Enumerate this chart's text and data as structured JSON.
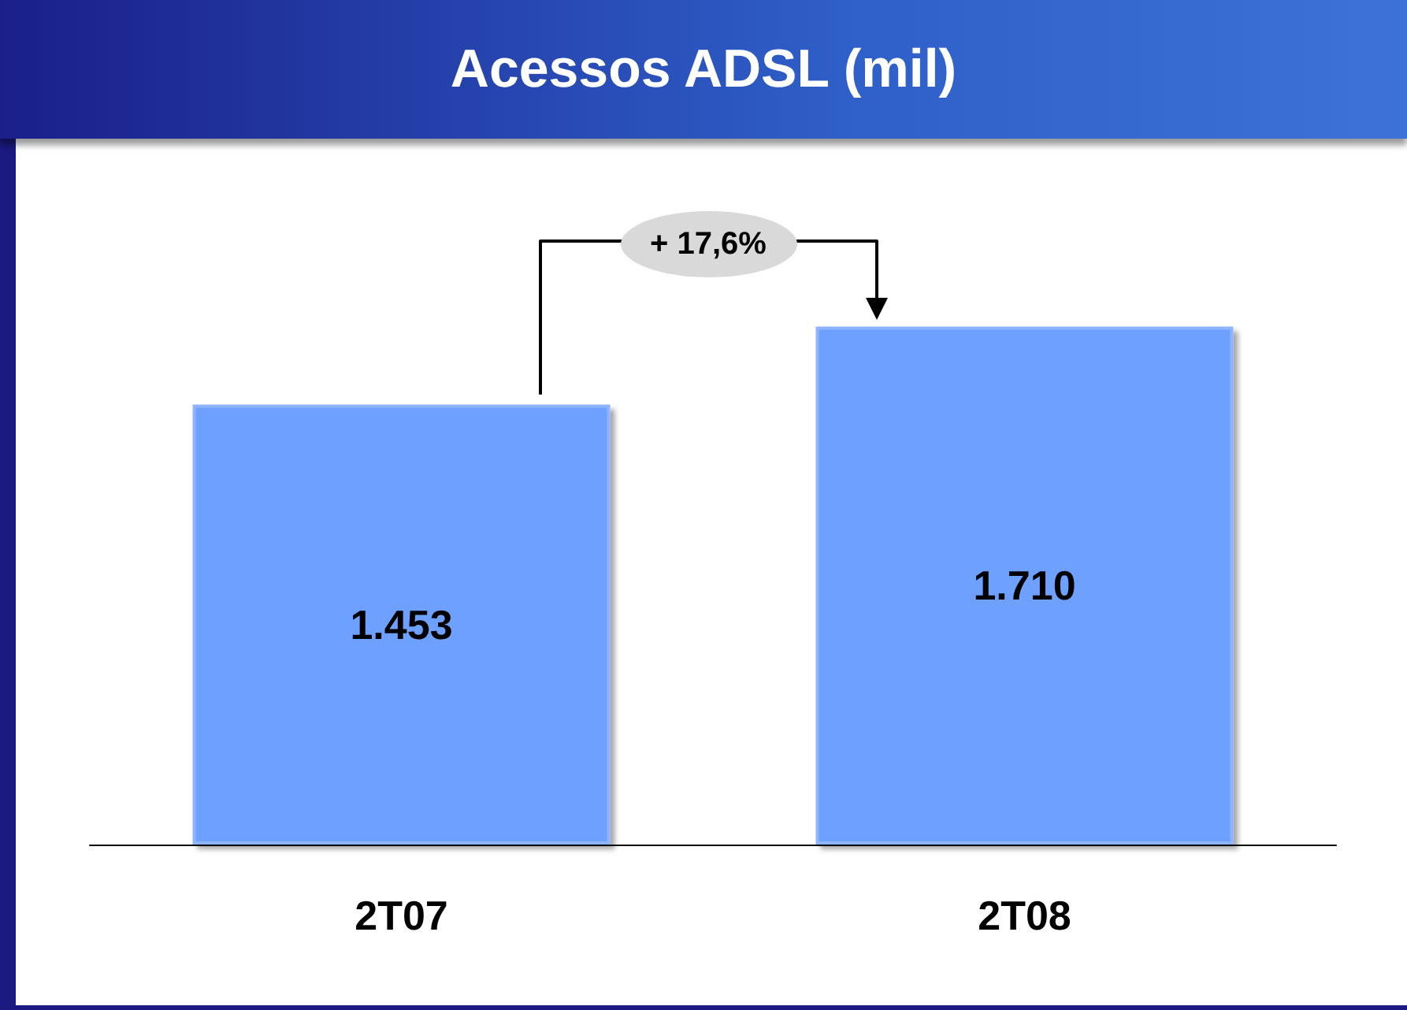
{
  "chart_data": {
    "type": "bar",
    "title": "Acessos ADSL (mil)",
    "categories": [
      "2T07",
      "2T08"
    ],
    "values": [
      1453,
      1710
    ],
    "value_labels": [
      "1.453",
      "1.710"
    ],
    "color": "#6ea0ff",
    "annotations": [
      "+ 17,6%"
    ]
  }
}
